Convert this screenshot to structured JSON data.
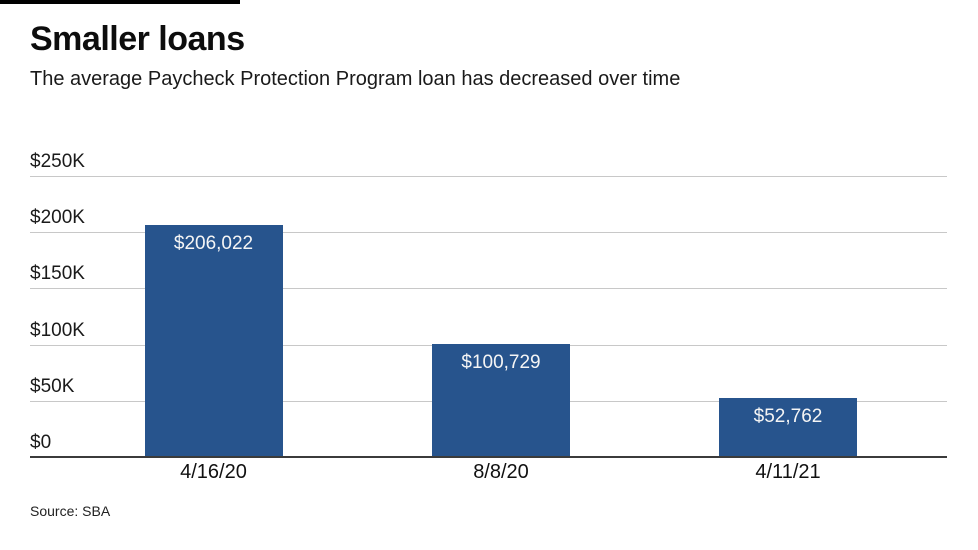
{
  "page": {
    "title": "Smaller loans",
    "subtitle": "The average Paycheck Protection Program loan has decreased over time",
    "source": "Source: SBA"
  },
  "colors": {
    "bar": "#27548D",
    "bar_value_text": "#F5F5F5",
    "gridline": "#C8C8C8",
    "zero_line": "#3B3B3B",
    "accent_rule": "#000000"
  },
  "chart_data": {
    "type": "bar",
    "title": "Smaller loans",
    "subtitle": "The average Paycheck Protection Program loan has decreased over time",
    "categories": [
      "4/16/20",
      "8/8/20",
      "4/11/21"
    ],
    "values": [
      206022,
      100729,
      52762
    ],
    "value_labels": [
      "$206,022",
      "$100,729",
      "$52,762"
    ],
    "xlabel": "",
    "ylabel": "",
    "ylim": [
      0,
      250000
    ],
    "grid": true,
    "legend": false,
    "yticks": [
      {
        "value": 0,
        "label": "$0"
      },
      {
        "value": 50000,
        "label": "$50K"
      },
      {
        "value": 100000,
        "label": "$100K"
      },
      {
        "value": 150000,
        "label": "$150K"
      },
      {
        "value": 200000,
        "label": "$200K"
      },
      {
        "value": 250000,
        "label": "$250K"
      }
    ],
    "source": "Source: SBA"
  }
}
